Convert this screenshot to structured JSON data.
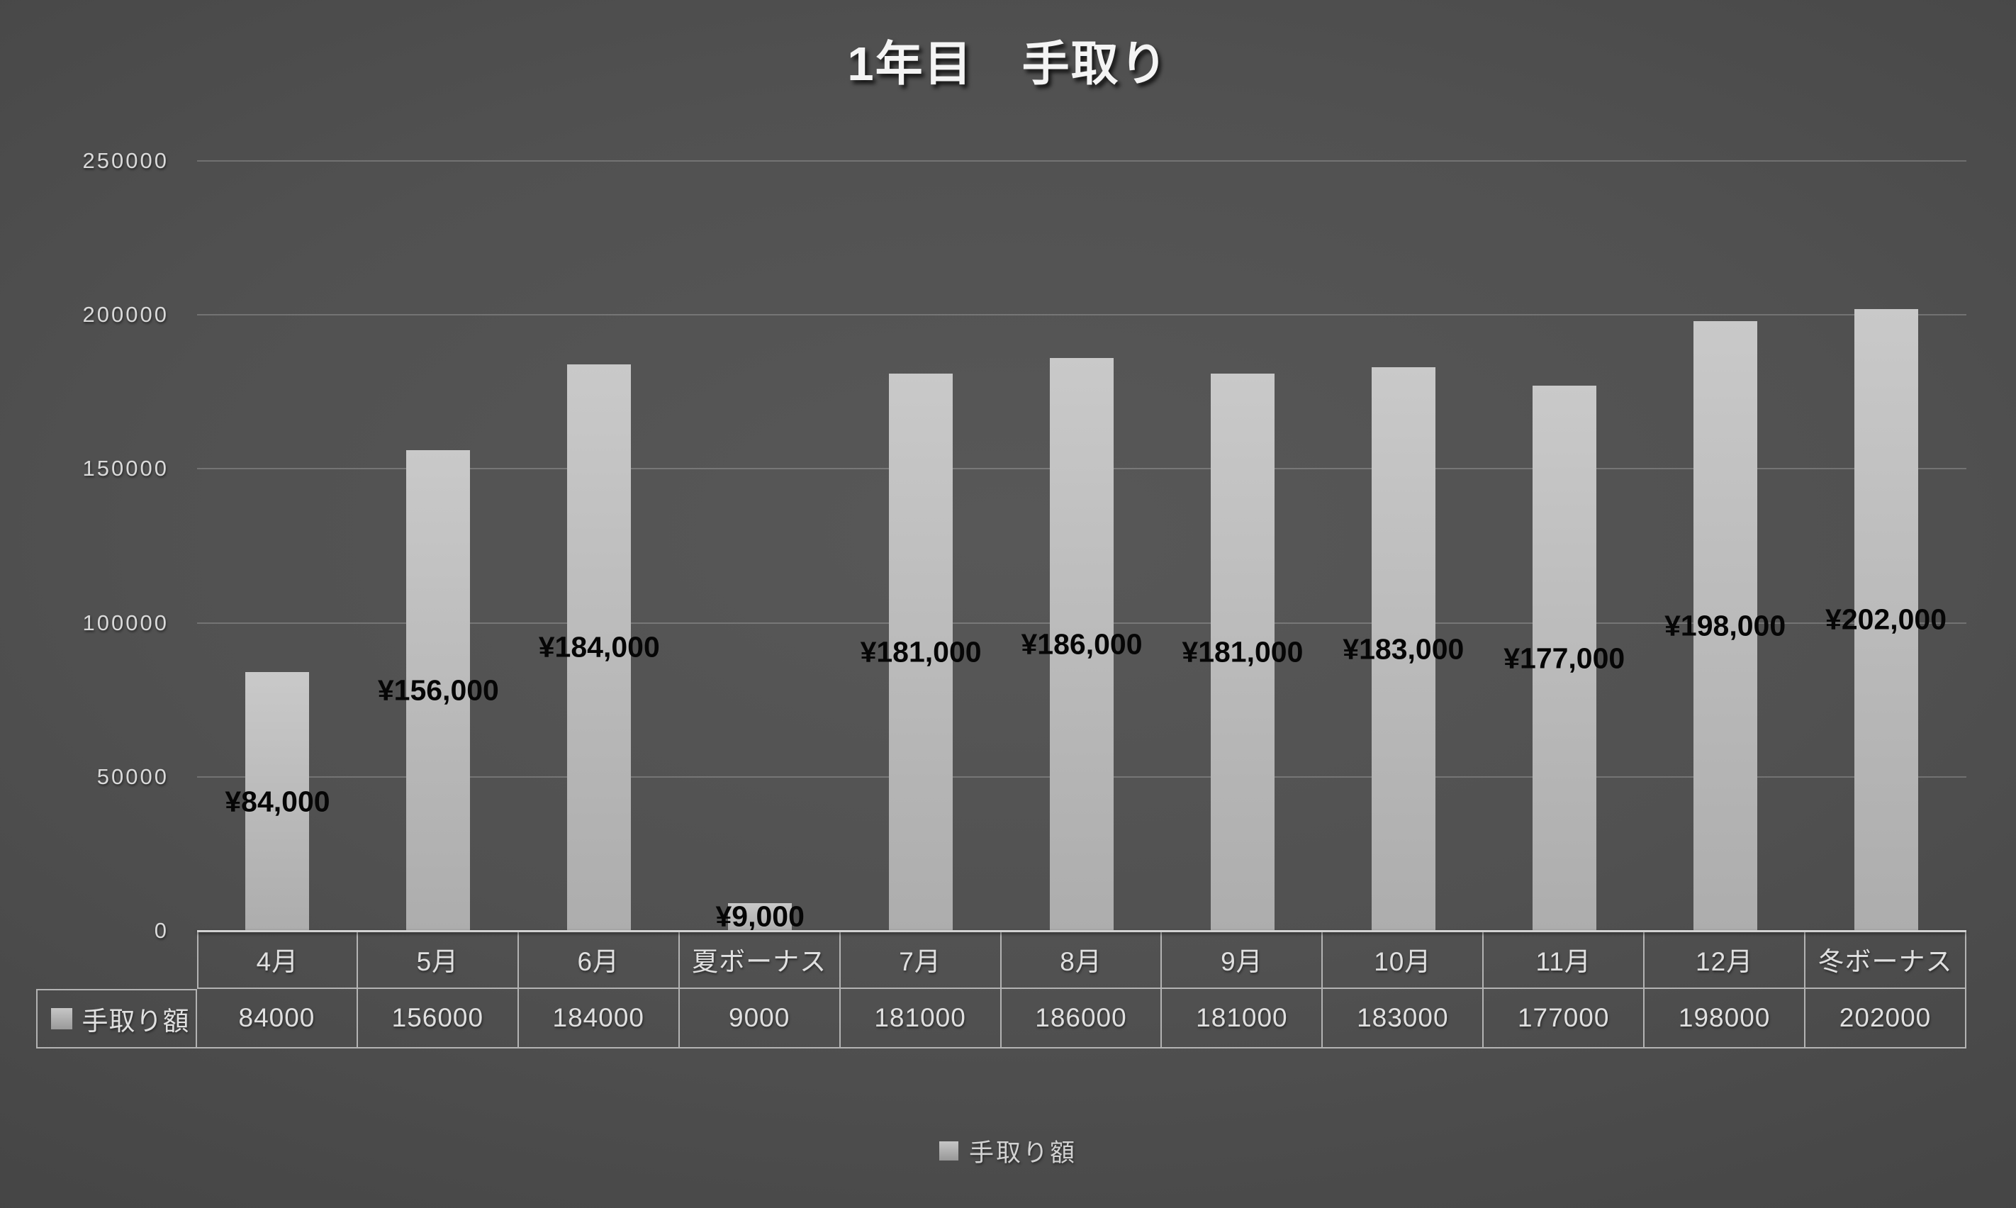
{
  "title": "1年目　手取り",
  "legend": {
    "label": "手取り額"
  },
  "y_axis": {
    "tick_labels": [
      "0",
      "50000",
      "100000",
      "150000",
      "200000",
      "250000"
    ]
  },
  "table": {
    "row_header": "手取り額",
    "categories": [
      "4月",
      "5月",
      "6月",
      "夏ボーナス",
      "7月",
      "8月",
      "9月",
      "10月",
      "11月",
      "12月",
      "冬ボーナス"
    ],
    "values_display": [
      "84000",
      "156000",
      "184000",
      "9000",
      "181000",
      "186000",
      "181000",
      "183000",
      "177000",
      "198000",
      "202000"
    ]
  },
  "chart_data": {
    "type": "bar",
    "title": "1年目　手取り",
    "categories": [
      "4月",
      "5月",
      "6月",
      "夏ボーナス",
      "7月",
      "8月",
      "9月",
      "10月",
      "11月",
      "12月",
      "冬ボーナス"
    ],
    "series": [
      {
        "name": "手取り額",
        "values": [
          84000,
          156000,
          184000,
          9000,
          181000,
          186000,
          181000,
          183000,
          177000,
          198000,
          202000
        ]
      }
    ],
    "data_labels": [
      "¥84,000",
      "¥156,000",
      "¥184,000",
      "¥9,000",
      "¥181,000",
      "¥186,000",
      "¥181,000",
      "¥183,000",
      "¥177,000",
      "¥198,000",
      "¥202,000"
    ],
    "data_label_position": "inside-center",
    "xlabel": "",
    "ylabel": "",
    "ylim": [
      0,
      250000
    ],
    "yticks": [
      0,
      50000,
      100000,
      150000,
      200000,
      250000
    ],
    "grid": true,
    "legend_position": "bottom",
    "data_table": true,
    "colors": {
      "bar_fill_top": "#c9c9c9",
      "bar_fill_bottom": "#adadad",
      "data_label": "#060606",
      "gridline": "#6f6f6f",
      "axis_line": "#d2d2d2",
      "axis_tick_text": "#d9d9d9",
      "table_border": "#b3b3b3",
      "table_text": "#e0e0e0",
      "title_text": "#f4f4f4",
      "background_center": "#575757",
      "background_corner": "#262626"
    }
  }
}
